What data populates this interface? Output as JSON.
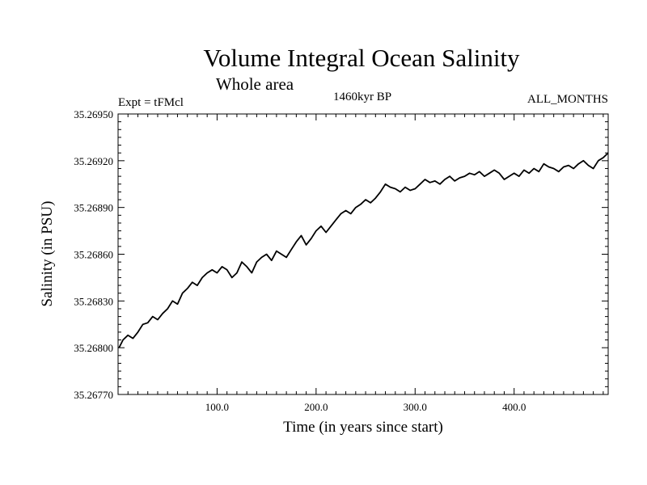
{
  "chart_data": {
    "type": "line",
    "title": "Volume Integral Ocean Salinity",
    "subtitle": "Whole area",
    "experiment_label": "Expt = tFMcl",
    "period_label": "1460kyr BP",
    "months_label": "ALL_MONTHS",
    "xlabel": "Time (in years since start)",
    "ylabel": "Salinity (in PSU)",
    "xlim": [
      0,
      495
    ],
    "ylim": [
      35.2677,
      35.2695
    ],
    "x_ticks": [
      100,
      200,
      300,
      400
    ],
    "x_tick_labels": [
      "100.0",
      "200.0",
      "300.0",
      "400.0"
    ],
    "y_ticks": [
      35.2677,
      35.268,
      35.2683,
      35.2686,
      35.2689,
      35.2692,
      35.2695
    ],
    "y_tick_labels": [
      "35.26770",
      "35.26800",
      "35.26830",
      "35.26860",
      "35.26890",
      "35.26920",
      "35.26950"
    ],
    "grid": false,
    "series": [
      {
        "name": "salinity",
        "x": [
          1,
          5,
          10,
          15,
          20,
          25,
          30,
          35,
          40,
          45,
          50,
          55,
          60,
          65,
          70,
          75,
          80,
          85,
          90,
          95,
          100,
          105,
          110,
          115,
          120,
          125,
          130,
          135,
          140,
          145,
          150,
          155,
          160,
          165,
          170,
          175,
          180,
          185,
          190,
          195,
          200,
          205,
          210,
          215,
          220,
          225,
          230,
          235,
          240,
          245,
          250,
          255,
          260,
          265,
          270,
          275,
          280,
          285,
          290,
          295,
          300,
          305,
          310,
          315,
          320,
          325,
          330,
          335,
          340,
          345,
          350,
          355,
          360,
          365,
          370,
          375,
          380,
          385,
          390,
          395,
          400,
          405,
          410,
          415,
          420,
          425,
          430,
          435,
          440,
          445,
          450,
          455,
          460,
          465,
          470,
          475,
          480,
          485,
          490,
          495
        ],
        "values": [
          35.268,
          35.26805,
          35.26808,
          35.26806,
          35.2681,
          35.26815,
          35.26816,
          35.2682,
          35.26818,
          35.26822,
          35.26825,
          35.2683,
          35.26828,
          35.26835,
          35.26838,
          35.26842,
          35.2684,
          35.26845,
          35.26848,
          35.2685,
          35.26848,
          35.26852,
          35.2685,
          35.26845,
          35.26848,
          35.26855,
          35.26852,
          35.26848,
          35.26855,
          35.26858,
          35.2686,
          35.26856,
          35.26862,
          35.2686,
          35.26858,
          35.26863,
          35.26868,
          35.26872,
          35.26866,
          35.2687,
          35.26875,
          35.26878,
          35.26874,
          35.26878,
          35.26882,
          35.26886,
          35.26888,
          35.26886,
          35.2689,
          35.26892,
          35.26895,
          35.26893,
          35.26896,
          35.269,
          35.26905,
          35.26903,
          35.26902,
          35.269,
          35.26903,
          35.26901,
          35.26902,
          35.26905,
          35.26908,
          35.26906,
          35.26907,
          35.26905,
          35.26908,
          35.2691,
          35.26907,
          35.26909,
          35.2691,
          35.26912,
          35.26911,
          35.26913,
          35.2691,
          35.26912,
          35.26914,
          35.26912,
          35.26908,
          35.2691,
          35.26912,
          35.2691,
          35.26914,
          35.26912,
          35.26915,
          35.26913,
          35.26918,
          35.26916,
          35.26915,
          35.26913,
          35.26916,
          35.26917,
          35.26915,
          35.26918,
          35.2692,
          35.26917,
          35.26915,
          35.2692,
          35.26922,
          35.26925
        ]
      }
    ]
  }
}
